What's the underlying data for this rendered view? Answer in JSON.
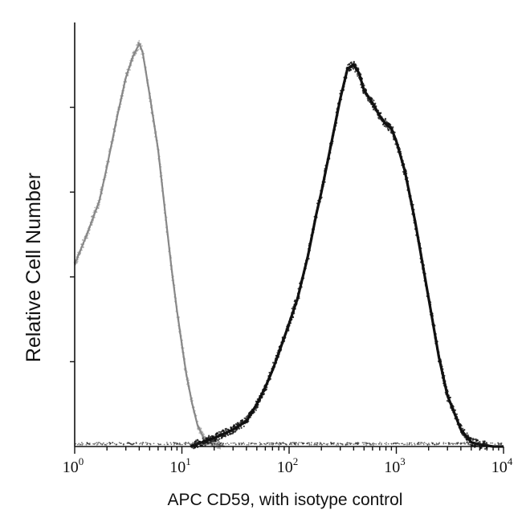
{
  "chart_data": {
    "type": "line",
    "title": "",
    "xlabel": "APC CD59, with isotype control",
    "ylabel": "Relative Cell Number",
    "x_scale": "log10",
    "xlim": [
      1,
      10000
    ],
    "ylim": [
      0,
      1
    ],
    "x_ticks": [
      {
        "base": "10",
        "exp": "0",
        "value": 1
      },
      {
        "base": "10",
        "exp": "1",
        "value": 10
      },
      {
        "base": "10",
        "exp": "2",
        "value": 100
      },
      {
        "base": "10",
        "exp": "3",
        "value": 1000
      },
      {
        "base": "10",
        "exp": "4",
        "value": 10000
      }
    ],
    "y_ticks": [
      0.2,
      0.4,
      0.6,
      0.8
    ],
    "grid": false,
    "legend": "none",
    "series": [
      {
        "role": "isotype-control",
        "color": "#888888",
        "style": "light-gray",
        "x": [
          1,
          1.3,
          1.7,
          2.0,
          2.5,
          3.0,
          3.5,
          4.0,
          4.3,
          5.0,
          6.0,
          7.0,
          8.0,
          9.0,
          10.0,
          11.0,
          12.5,
          14.0,
          16.0,
          18.0,
          21.0,
          25.0
        ],
        "y": [
          0.43,
          0.5,
          0.58,
          0.66,
          0.78,
          0.87,
          0.92,
          0.95,
          0.93,
          0.83,
          0.7,
          0.55,
          0.42,
          0.32,
          0.24,
          0.17,
          0.1,
          0.05,
          0.02,
          0.01,
          0.005,
          0.0
        ]
      },
      {
        "role": "APC CD59",
        "color": "#111111",
        "style": "dark",
        "x": [
          12,
          20,
          30,
          40,
          50,
          60,
          70,
          80,
          100,
          120,
          150,
          180,
          200,
          250,
          300,
          350,
          400,
          450,
          500,
          600,
          700,
          800,
          900,
          1000,
          1200,
          1500,
          2000,
          2500,
          3000,
          4000,
          5000,
          6000,
          8000,
          10000
        ],
        "y": [
          0.0,
          0.02,
          0.04,
          0.06,
          0.1,
          0.14,
          0.18,
          0.22,
          0.29,
          0.35,
          0.45,
          0.55,
          0.6,
          0.72,
          0.82,
          0.89,
          0.9,
          0.88,
          0.84,
          0.81,
          0.78,
          0.76,
          0.75,
          0.72,
          0.65,
          0.53,
          0.35,
          0.21,
          0.12,
          0.04,
          0.01,
          0.005,
          0.0,
          0.0
        ]
      }
    ]
  }
}
